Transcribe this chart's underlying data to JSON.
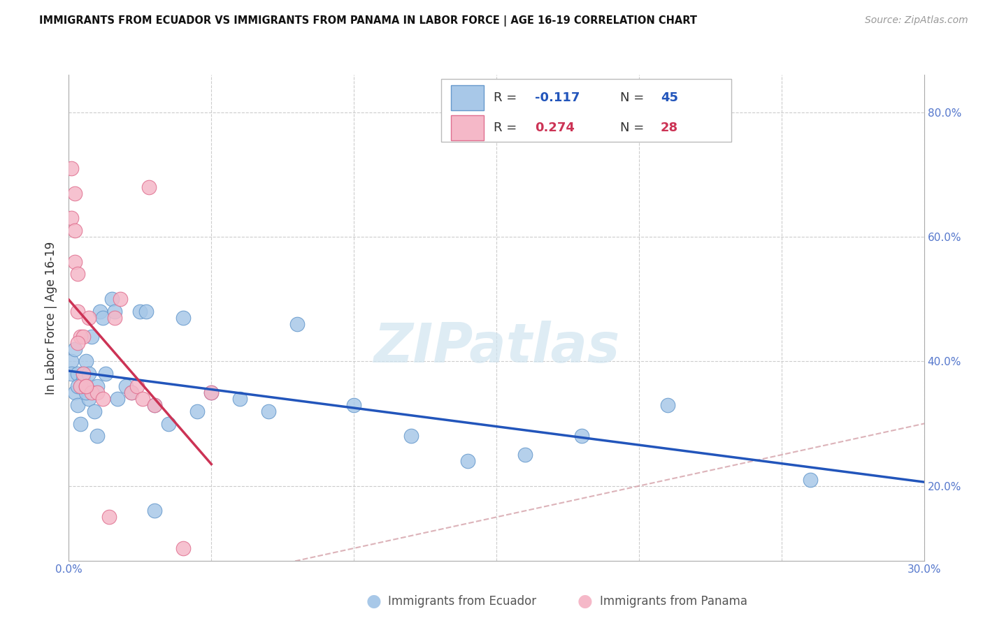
{
  "title": "IMMIGRANTS FROM ECUADOR VS IMMIGRANTS FROM PANAMA IN LABOR FORCE | AGE 16-19 CORRELATION CHART",
  "source": "Source: ZipAtlas.com",
  "ylabel": "In Labor Force | Age 16-19",
  "xlim": [
    0.0,
    0.3
  ],
  "ylim": [
    0.08,
    0.86
  ],
  "xticks": [
    0.0,
    0.05,
    0.1,
    0.15,
    0.2,
    0.25,
    0.3
  ],
  "yticks": [
    0.2,
    0.4,
    0.6,
    0.8
  ],
  "ecuador_color": "#a8c8e8",
  "ecuador_edge": "#6699cc",
  "panama_color": "#f5b8c8",
  "panama_edge": "#e07090",
  "trend_ecuador_color": "#2255bb",
  "trend_panama_color": "#cc3355",
  "diag_color": "#d4a0a8",
  "watermark_text": "ZIPatlas",
  "watermark_color": "#d0e4f0",
  "legend_ecuador_label": "Immigrants from Ecuador",
  "legend_panama_label": "Immigrants from Panama",
  "ecuador_x": [
    0.001,
    0.001,
    0.002,
    0.002,
    0.003,
    0.003,
    0.004,
    0.004,
    0.005,
    0.005,
    0.006,
    0.007,
    0.007,
    0.008,
    0.009,
    0.01,
    0.011,
    0.012,
    0.013,
    0.015,
    0.016,
    0.017,
    0.02,
    0.022,
    0.025,
    0.027,
    0.03,
    0.035,
    0.04,
    0.045,
    0.05,
    0.06,
    0.07,
    0.08,
    0.1,
    0.12,
    0.14,
    0.16,
    0.18,
    0.21,
    0.26,
    0.003,
    0.006,
    0.01,
    0.03
  ],
  "ecuador_y": [
    0.4,
    0.38,
    0.42,
    0.35,
    0.38,
    0.33,
    0.36,
    0.3,
    0.38,
    0.37,
    0.4,
    0.38,
    0.34,
    0.44,
    0.32,
    0.36,
    0.48,
    0.47,
    0.38,
    0.5,
    0.48,
    0.34,
    0.36,
    0.35,
    0.48,
    0.48,
    0.33,
    0.3,
    0.47,
    0.32,
    0.35,
    0.34,
    0.32,
    0.46,
    0.33,
    0.28,
    0.24,
    0.25,
    0.28,
    0.33,
    0.21,
    0.36,
    0.35,
    0.28,
    0.16
  ],
  "panama_x": [
    0.001,
    0.001,
    0.002,
    0.002,
    0.003,
    0.003,
    0.004,
    0.004,
    0.005,
    0.005,
    0.006,
    0.007,
    0.008,
    0.01,
    0.012,
    0.014,
    0.016,
    0.018,
    0.022,
    0.024,
    0.026,
    0.028,
    0.03,
    0.04,
    0.05,
    0.002,
    0.003,
    0.006
  ],
  "panama_y": [
    0.71,
    0.63,
    0.67,
    0.56,
    0.54,
    0.48,
    0.44,
    0.36,
    0.44,
    0.38,
    0.36,
    0.47,
    0.35,
    0.35,
    0.34,
    0.15,
    0.47,
    0.5,
    0.35,
    0.36,
    0.34,
    0.68,
    0.33,
    0.1,
    0.35,
    0.61,
    0.43,
    0.36
  ]
}
